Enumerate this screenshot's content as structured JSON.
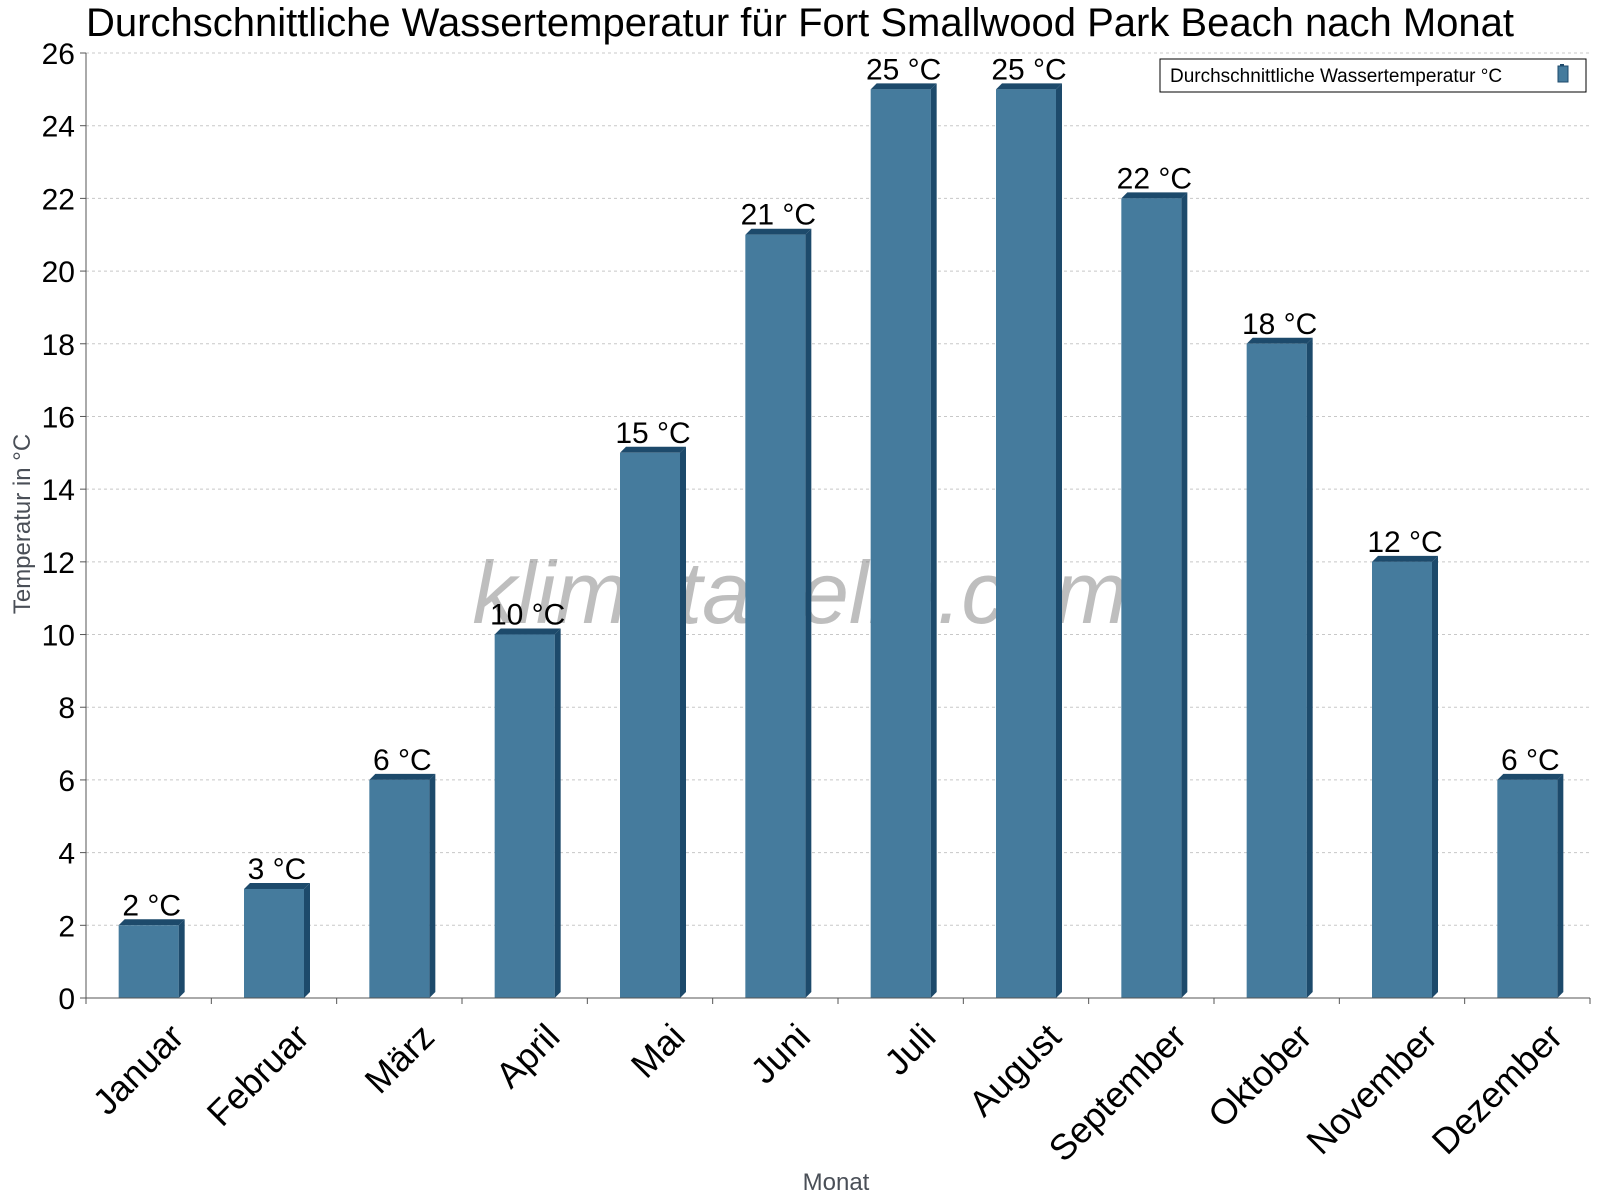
{
  "chart_data": {
    "type": "bar",
    "title": "Durchschnittliche Wassertemperatur für Fort Smallwood Park Beach nach Monat",
    "xlabel": "Monat",
    "ylabel": "Temperatur in °C",
    "categories": [
      "Januar",
      "Februar",
      "März",
      "April",
      "Mai",
      "Juni",
      "Juli",
      "August",
      "September",
      "Oktober",
      "November",
      "Dezember"
    ],
    "series": [
      {
        "name": "Durchschnittliche Wassertemperatur °C",
        "values": [
          2,
          3,
          6,
          10,
          15,
          21,
          25,
          25,
          22,
          18,
          12,
          6
        ],
        "data_labels": [
          "2 °C",
          "3 °C",
          "6 °C",
          "10 °C",
          "15 °C",
          "21 °C",
          "25 °C",
          "25 °C",
          "22 °C",
          "18 °C",
          "12 °C",
          "6 °C"
        ]
      }
    ],
    "ylim": [
      0,
      26
    ],
    "yticks": [
      0,
      2,
      4,
      6,
      8,
      10,
      12,
      14,
      16,
      18,
      20,
      22,
      24,
      26
    ],
    "grid": true,
    "legend_position": "top-right",
    "watermark": "klimatabelle.com",
    "colors": {
      "bar_front": "#457b9d",
      "bar_side": "#1d4a6b",
      "grid": "#c8c8c8",
      "axis": "#555555"
    }
  }
}
